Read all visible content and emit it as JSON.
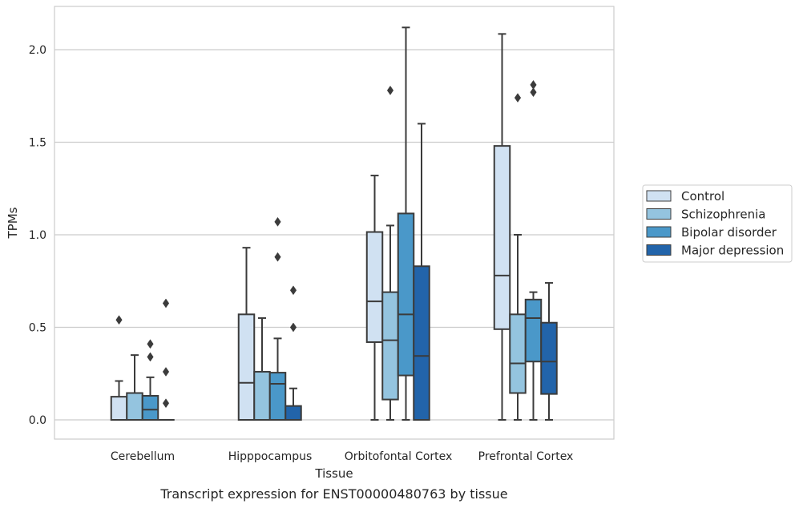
{
  "chart_data": {
    "type": "box",
    "title": "",
    "caption": "Transcript expression for ENST00000480763 by tissue",
    "xlabel": "Tissue",
    "ylabel": "TPMs",
    "ylim": [
      -0.1,
      2.24
    ],
    "yticks": [
      "0.0",
      "0.5",
      "1.0",
      "1.5",
      "2.0"
    ],
    "grid": "horizontal",
    "legend_position": "right",
    "categories": [
      "Cerebellum",
      "Hipppocampus",
      "Orbitofontal Cortex",
      "Prefrontal Cortex"
    ],
    "series": [
      {
        "name": "Control",
        "color": "#d0e1f2",
        "boxes": [
          {
            "whislo": 0,
            "q1": 0,
            "med": 0,
            "q3": 0.125,
            "whishi": 0.21,
            "fliers": [
              0.54
            ]
          },
          {
            "whislo": 0,
            "q1": 0,
            "med": 0.2,
            "q3": 0.57,
            "whishi": 0.93,
            "fliers": []
          },
          {
            "whislo": 0,
            "q1": 0.42,
            "med": 0.64,
            "q3": 1.015,
            "whishi": 1.32,
            "fliers": []
          },
          {
            "whislo": 0,
            "q1": 0.49,
            "med": 0.78,
            "q3": 1.48,
            "whishi": 2.085,
            "fliers": []
          }
        ]
      },
      {
        "name": "Schizophrenia",
        "color": "#94c4df",
        "boxes": [
          {
            "whislo": 0,
            "q1": 0,
            "med": 0,
            "q3": 0.145,
            "whishi": 0.35,
            "fliers": []
          },
          {
            "whislo": 0,
            "q1": 0,
            "med": 0,
            "q3": 0.26,
            "whishi": 0.55,
            "fliers": []
          },
          {
            "whislo": 0,
            "q1": 0.11,
            "med": 0.43,
            "q3": 0.69,
            "whishi": 1.05,
            "fliers": [
              1.78
            ]
          },
          {
            "whislo": 0,
            "q1": 0.145,
            "med": 0.305,
            "q3": 0.57,
            "whishi": 1.0,
            "fliers": [
              1.74
            ]
          }
        ]
      },
      {
        "name": "Bipolar disorder",
        "color": "#4a98c9",
        "boxes": [
          {
            "whislo": 0,
            "q1": 0,
            "med": 0.055,
            "q3": 0.13,
            "whishi": 0.23,
            "fliers": [
              0.34,
              0.41
            ]
          },
          {
            "whislo": 0,
            "q1": 0,
            "med": 0.195,
            "q3": 0.255,
            "whishi": 0.44,
            "fliers": [
              0.88,
              1.07
            ]
          },
          {
            "whislo": 0,
            "q1": 0.24,
            "med": 0.57,
            "q3": 1.115,
            "whishi": 2.12,
            "fliers": []
          },
          {
            "whislo": 0,
            "q1": 0.315,
            "med": 0.55,
            "q3": 0.65,
            "whishi": 0.69,
            "fliers": [
              1.77,
              1.81
            ]
          }
        ]
      },
      {
        "name": "Major depression",
        "color": "#2264aa",
        "boxes": [
          {
            "whislo": 0,
            "q1": 0,
            "med": 0,
            "q3": 0,
            "whishi": 0,
            "fliers": [
              0.09,
              0.26,
              0.63
            ]
          },
          {
            "whislo": 0,
            "q1": 0,
            "med": 0,
            "q3": 0.075,
            "whishi": 0.17,
            "fliers": [
              0.5,
              0.7
            ]
          },
          {
            "whislo": 0,
            "q1": 0,
            "med": 0.345,
            "q3": 0.83,
            "whishi": 1.6,
            "fliers": []
          },
          {
            "whislo": 0,
            "q1": 0.14,
            "med": 0.315,
            "q3": 0.525,
            "whishi": 0.74,
            "fliers": []
          }
        ]
      }
    ]
  }
}
